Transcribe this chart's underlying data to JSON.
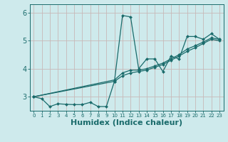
{
  "background_color": "#ceeaec",
  "grid_color": "#c8b8b8",
  "line_color": "#1a6b6b",
  "xlabel": "Humidex (Indice chaleur)",
  "xlabel_fontsize": 8,
  "ytick_labels": [
    "3",
    "4",
    "5",
    "6"
  ],
  "yticks": [
    3,
    4,
    5,
    6
  ],
  "xticks": [
    0,
    1,
    2,
    3,
    4,
    5,
    6,
    7,
    8,
    9,
    10,
    11,
    12,
    13,
    14,
    15,
    16,
    17,
    18,
    19,
    20,
    21,
    22,
    23
  ],
  "xlim": [
    -0.5,
    23.5
  ],
  "ylim": [
    2.5,
    6.3
  ],
  "series": [
    {
      "x": [
        0,
        1,
        2,
        3,
        4,
        5,
        6,
        7,
        8,
        9,
        10,
        11,
        12,
        13,
        14,
        15,
        16,
        17,
        18,
        19,
        20,
        21,
        22,
        23
      ],
      "y": [
        3.0,
        2.93,
        2.65,
        2.75,
        2.73,
        2.72,
        2.72,
        2.8,
        2.65,
        2.65,
        3.55,
        5.9,
        5.85,
        4.0,
        4.35,
        4.35,
        3.9,
        4.45,
        4.35,
        5.15,
        5.15,
        5.05,
        5.25,
        5.05
      ]
    },
    {
      "x": [
        0,
        10,
        11,
        12,
        13,
        14,
        15,
        16,
        17,
        18,
        19,
        20,
        21,
        22,
        23
      ],
      "y": [
        3.0,
        3.6,
        3.85,
        3.95,
        3.95,
        4.0,
        4.1,
        4.2,
        4.35,
        4.5,
        4.7,
        4.82,
        4.95,
        5.1,
        5.05
      ]
    },
    {
      "x": [
        0,
        10,
        11,
        12,
        13,
        14,
        15,
        16,
        17,
        18,
        19,
        20,
        21,
        22,
        23
      ],
      "y": [
        3.0,
        3.55,
        3.75,
        3.85,
        3.9,
        3.95,
        4.05,
        4.15,
        4.3,
        4.45,
        4.62,
        4.75,
        4.9,
        5.05,
        5.0
      ]
    }
  ]
}
